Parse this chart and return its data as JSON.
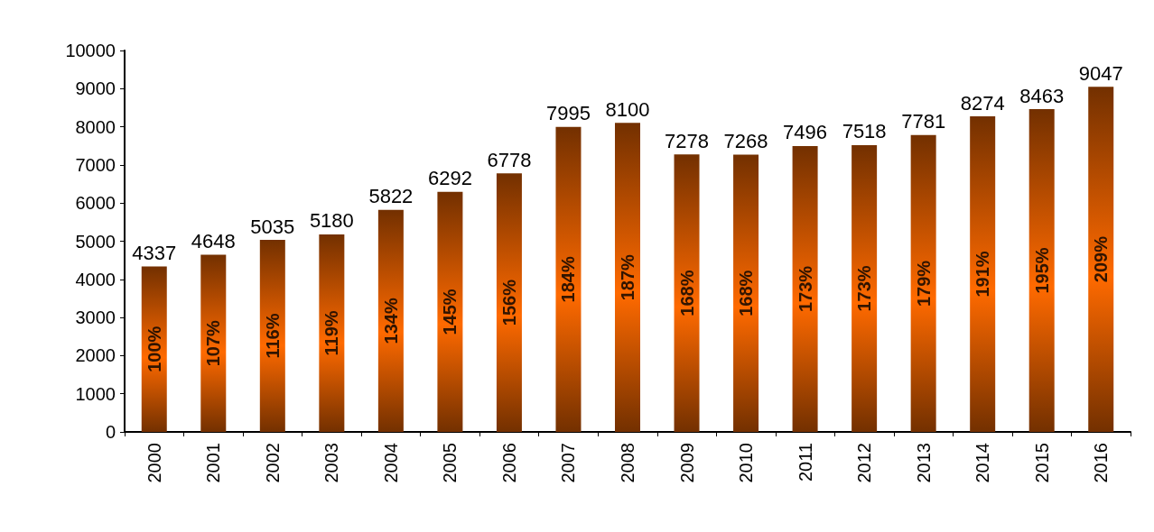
{
  "chart_data": {
    "type": "bar",
    "categories": [
      "2000",
      "2001",
      "2002",
      "2003",
      "2004",
      "2005",
      "2006",
      "2007",
      "2008",
      "2009",
      "2010",
      "2011",
      "2012",
      "2013",
      "2014",
      "2015",
      "2016"
    ],
    "values": [
      4337,
      4648,
      5035,
      5180,
      5822,
      6292,
      6778,
      7995,
      8100,
      7278,
      7268,
      7496,
      7518,
      7781,
      8274,
      8463,
      9047
    ],
    "annotations": [
      "100%",
      "107%",
      "116%",
      "119%",
      "134%",
      "145%",
      "156%",
      "184%",
      "187%",
      "168%",
      "168%",
      "173%",
      "173%",
      "179%",
      "191%",
      "195%",
      "209%"
    ],
    "color": "#ff6a00",
    "data_labels": true,
    "ylim": [
      0,
      10000
    ],
    "yticks": [
      0,
      1000,
      2000,
      3000,
      4000,
      5000,
      6000,
      7000,
      8000,
      9000,
      10000
    ],
    "grid": false
  }
}
